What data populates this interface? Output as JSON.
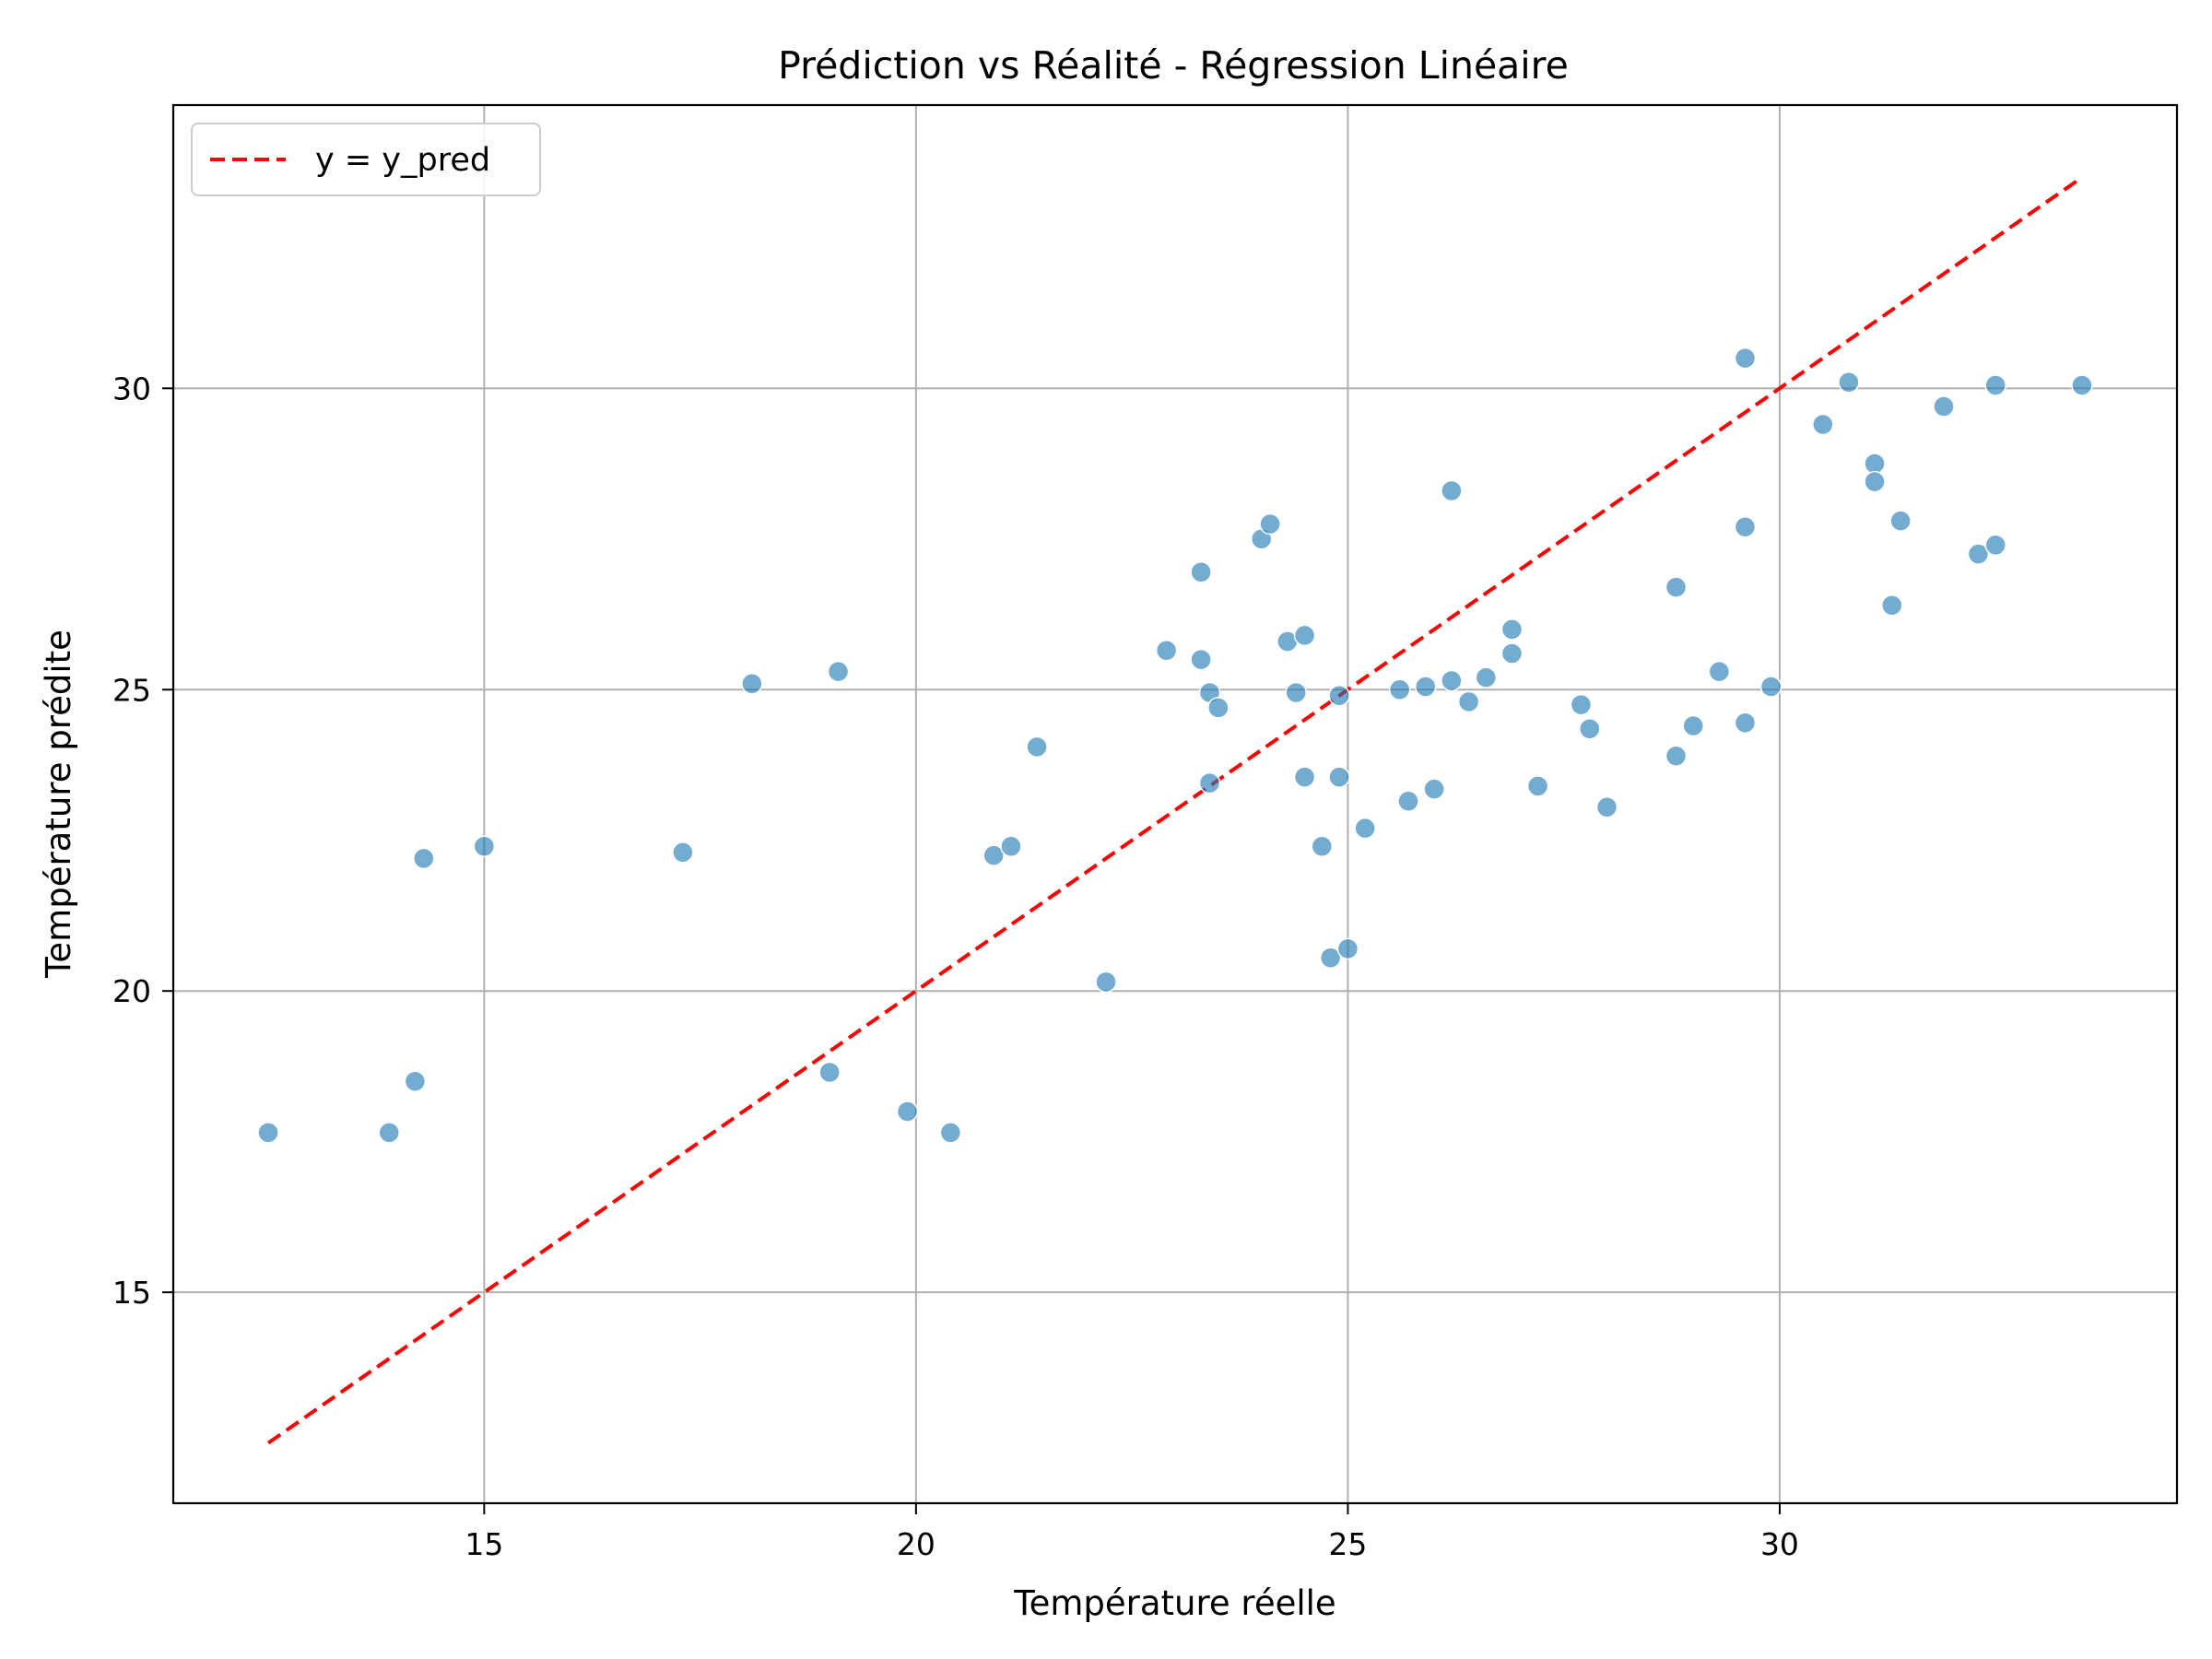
{
  "chart_data": {
    "type": "scatter",
    "title": "Prédiction vs Réalité - Régression Linéaire",
    "xlabel": "Température réelle",
    "ylabel": "Température prédite",
    "xlim": [
      11.4,
      34.6
    ],
    "ylim": [
      11.5,
      34.7
    ],
    "xticks": [
      15,
      20,
      25,
      30
    ],
    "yticks": [
      15,
      20,
      25,
      30
    ],
    "grid": true,
    "legend": {
      "placement": "top-left",
      "entries": [
        "y = y_pred"
      ]
    },
    "colors": {
      "points": "#1f77b4",
      "reference_line": "#ff0000",
      "grid": "#b0b0b0"
    },
    "reference_line": {
      "label": "y = y_pred",
      "style": "dashed",
      "x": [
        12.5,
        33.5
      ],
      "y": [
        12.5,
        33.5
      ]
    },
    "series": [
      {
        "type": "scatter",
        "points": [
          [
            12.5,
            17.65
          ],
          [
            13.9,
            17.65
          ],
          [
            14.2,
            18.5
          ],
          [
            14.3,
            22.2
          ],
          [
            15.0,
            22.4
          ],
          [
            17.3,
            22.3
          ],
          [
            18.1,
            25.1
          ],
          [
            19.0,
            18.65
          ],
          [
            19.1,
            25.3
          ],
          [
            19.9,
            18.0
          ],
          [
            20.4,
            17.65
          ],
          [
            20.9,
            22.25
          ],
          [
            21.1,
            22.4
          ],
          [
            21.4,
            24.05
          ],
          [
            22.2,
            20.15
          ],
          [
            22.9,
            25.65
          ],
          [
            23.3,
            26.95
          ],
          [
            23.3,
            25.5
          ],
          [
            23.4,
            24.95
          ],
          [
            23.4,
            23.45
          ],
          [
            23.5,
            24.7
          ],
          [
            24.0,
            27.5
          ],
          [
            24.1,
            27.75
          ],
          [
            24.3,
            25.8
          ],
          [
            24.4,
            24.95
          ],
          [
            24.5,
            23.55
          ],
          [
            24.5,
            25.9
          ],
          [
            24.7,
            22.4
          ],
          [
            24.8,
            20.55
          ],
          [
            24.9,
            24.9
          ],
          [
            24.9,
            23.55
          ],
          [
            25.0,
            20.7
          ],
          [
            25.2,
            22.7
          ],
          [
            25.6,
            25.0
          ],
          [
            25.7,
            23.15
          ],
          [
            25.9,
            25.05
          ],
          [
            26.0,
            23.35
          ],
          [
            26.2,
            28.3
          ],
          [
            26.2,
            25.15
          ],
          [
            26.4,
            24.8
          ],
          [
            26.6,
            25.2
          ],
          [
            26.9,
            25.6
          ],
          [
            26.9,
            26.0
          ],
          [
            27.2,
            23.4
          ],
          [
            27.7,
            24.75
          ],
          [
            27.8,
            24.35
          ],
          [
            28.0,
            23.05
          ],
          [
            28.8,
            26.7
          ],
          [
            28.8,
            23.9
          ],
          [
            29.0,
            24.4
          ],
          [
            29.3,
            25.3
          ],
          [
            29.6,
            30.5
          ],
          [
            29.6,
            27.7
          ],
          [
            29.6,
            24.45
          ],
          [
            29.9,
            25.05
          ],
          [
            30.5,
            29.4
          ],
          [
            30.8,
            30.1
          ],
          [
            31.1,
            28.75
          ],
          [
            31.1,
            28.45
          ],
          [
            31.3,
            26.4
          ],
          [
            31.4,
            27.8
          ],
          [
            31.9,
            29.7
          ],
          [
            32.3,
            27.25
          ],
          [
            32.5,
            30.05
          ],
          [
            32.5,
            27.4
          ],
          [
            33.5,
            30.05
          ]
        ]
      }
    ]
  }
}
